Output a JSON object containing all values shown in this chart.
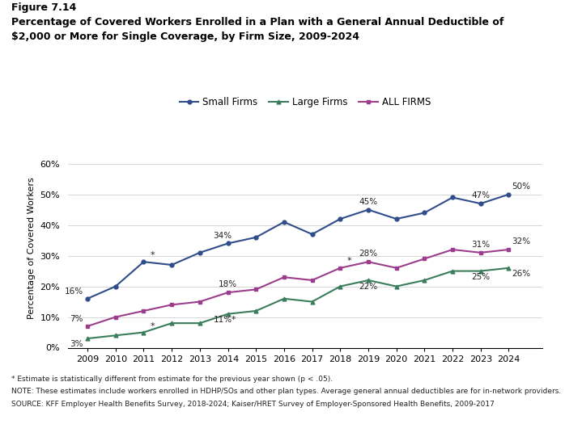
{
  "years": [
    2009,
    2010,
    2011,
    2012,
    2013,
    2014,
    2015,
    2016,
    2017,
    2018,
    2019,
    2020,
    2021,
    2022,
    2023,
    2024
  ],
  "small_firms": [
    16,
    20,
    28,
    27,
    31,
    34,
    36,
    41,
    37,
    42,
    45,
    42,
    44,
    49,
    47,
    50
  ],
  "large_firms": [
    3,
    4,
    5,
    8,
    8,
    11,
    12,
    16,
    15,
    20,
    22,
    20,
    22,
    25,
    25,
    26
  ],
  "all_firms": [
    7,
    10,
    12,
    14,
    15,
    18,
    19,
    23,
    22,
    26,
    28,
    26,
    29,
    32,
    31,
    32
  ],
  "small_firms_color": "#2e4d8a",
  "large_firms_color": "#3a7d5a",
  "all_firms_color": "#9b3d8c",
  "title_line1": "Figure 7.14",
  "title_line2": "Percentage of Covered Workers Enrolled in a Plan with a General Annual Deductible of",
  "title_line3": "$2,000 or More for Single Coverage, by Firm Size, 2009-2024",
  "ylabel": "Percentage of Covered Workers",
  "ylim": [
    0,
    65
  ],
  "yticks": [
    0,
    10,
    20,
    30,
    40,
    50,
    60
  ],
  "ytick_labels": [
    "0%",
    "10%",
    "20%",
    "30%",
    "40%",
    "50%",
    "60%"
  ],
  "footnote1": "* Estimate is statistically different from estimate for the previous year shown (p < .05).",
  "footnote2": "NOTE: These estimates include workers enrolled in HDHP/SOs and other plan types. Average general annual deductibles are for in-network providers.",
  "footnote3": "SOURCE: KFF Employer Health Benefits Survey, 2018-2024; Kaiser/HRET Survey of Employer-Sponsored Health Benefits, 2009-2017",
  "legend_labels": [
    "Small Firms",
    "Large Firms",
    "ALL FIRMS"
  ],
  "background_color": "#ffffff"
}
